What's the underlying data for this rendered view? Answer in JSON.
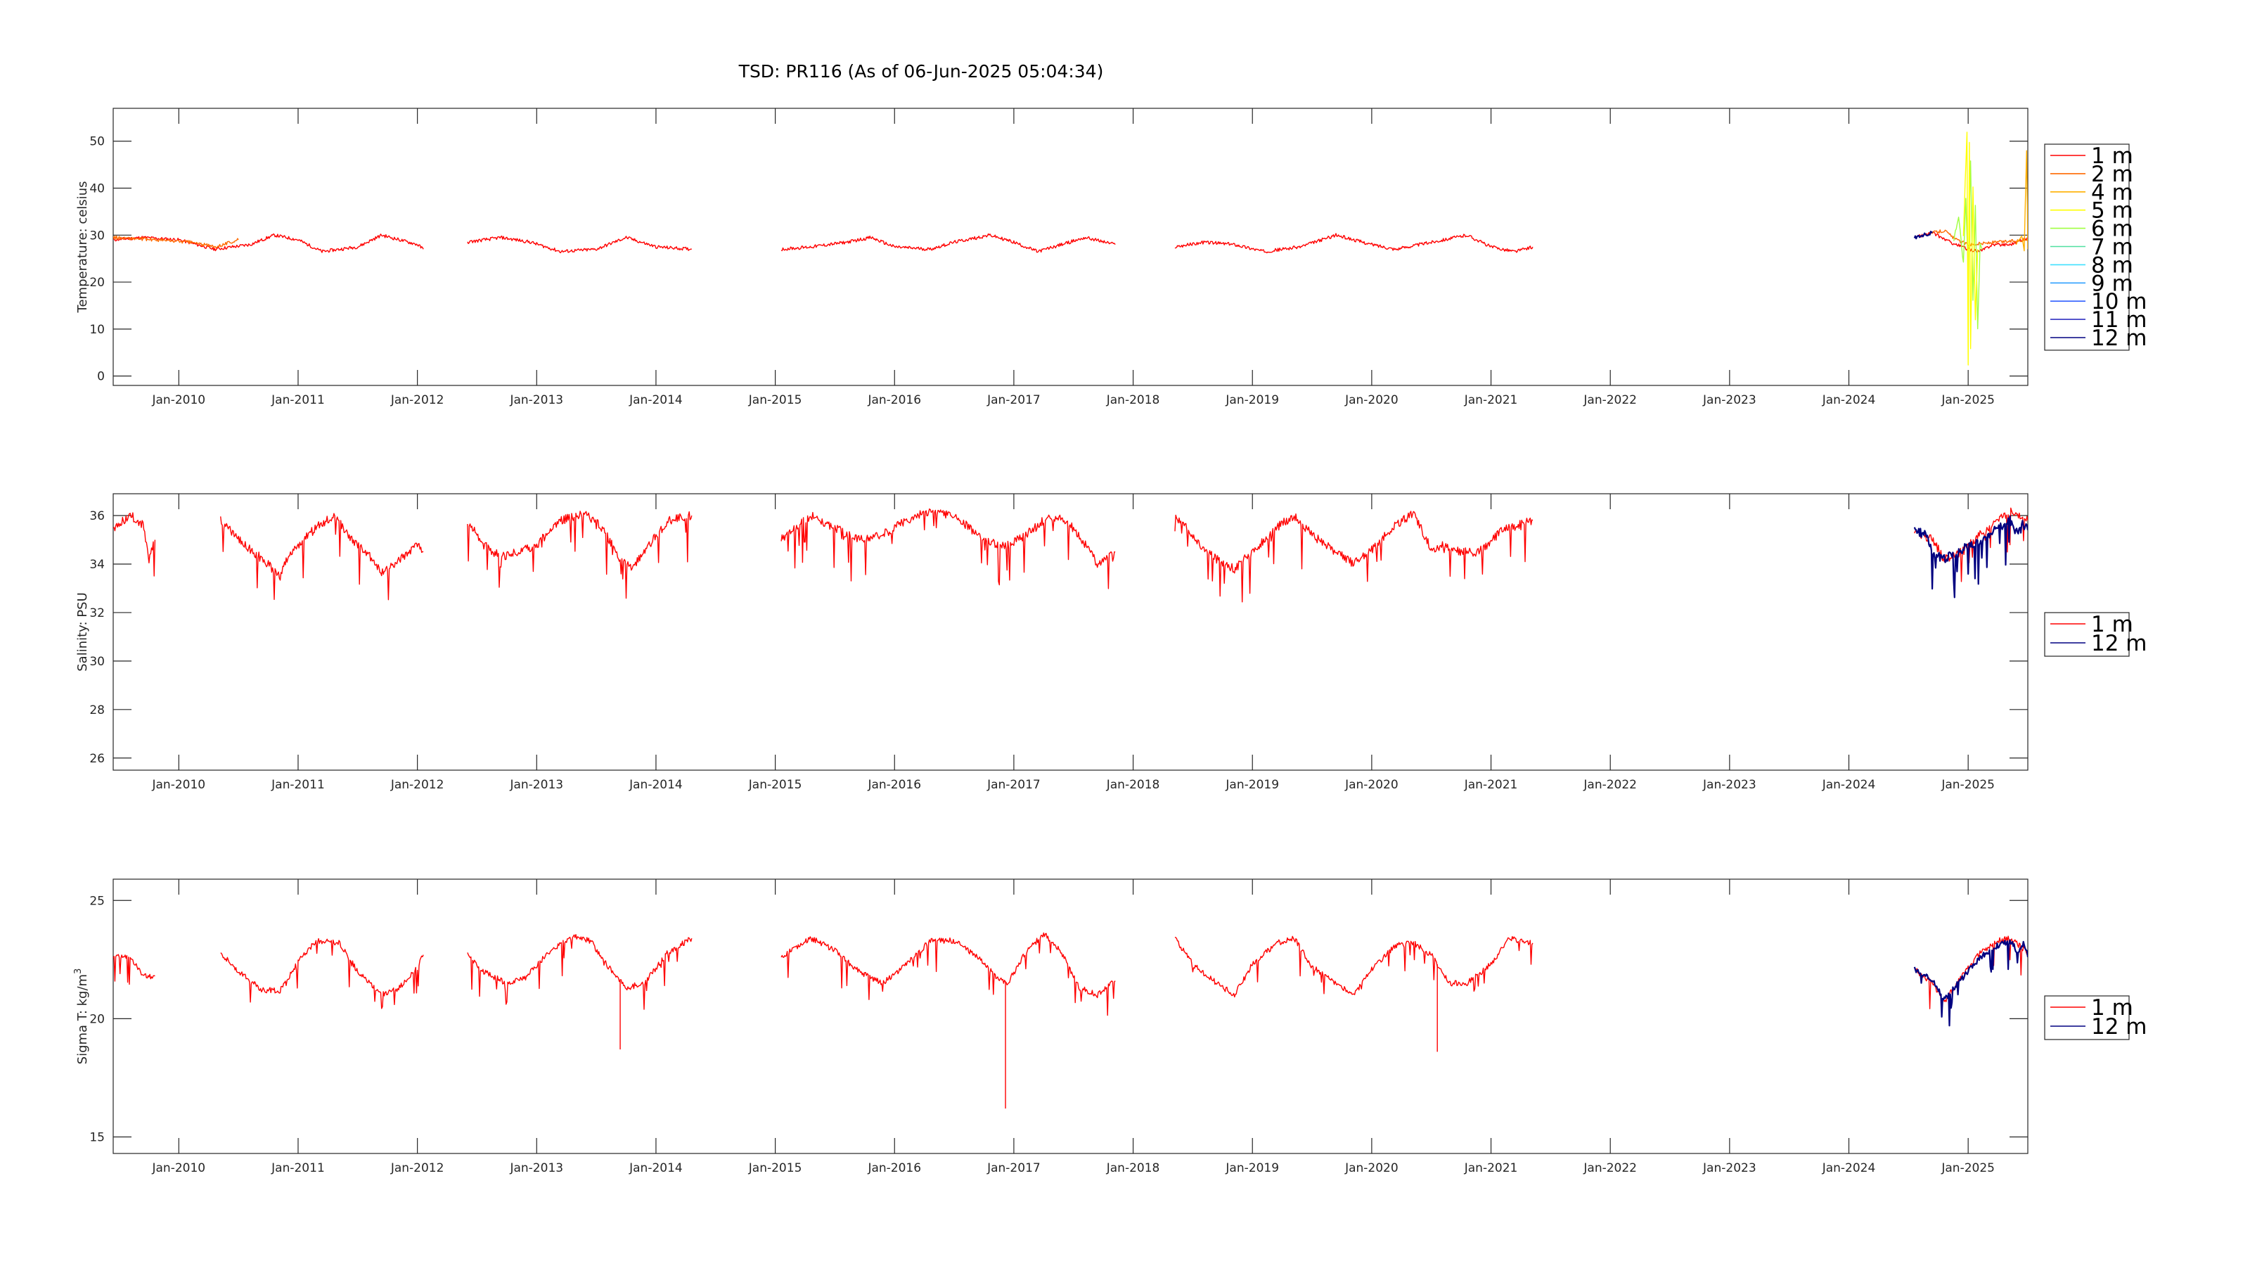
{
  "figure": {
    "title": "TSD: PR116 (As of 06-Jun-2025 05:04:34)"
  },
  "chart_data": [
    {
      "id": "temperature",
      "type": "line",
      "ylabel": "Temperature:  celsius",
      "ylim": [
        -2,
        57
      ],
      "yticks": [
        0,
        10,
        20,
        30,
        40,
        50
      ],
      "xlim": [
        2009.45,
        2025.5
      ],
      "xticks": [
        "Jan-2010",
        "Jan-2011",
        "Jan-2012",
        "Jan-2013",
        "Jan-2014",
        "Jan-2015",
        "Jan-2016",
        "Jan-2017",
        "Jan-2018",
        "Jan-2019",
        "Jan-2020",
        "Jan-2021",
        "Jan-2022",
        "Jan-2023",
        "Jan-2024",
        "Jan-2025"
      ],
      "legend": [
        "1 m",
        "2 m",
        "4 m",
        "5 m",
        "6 m",
        "7 m",
        "8 m",
        "9 m",
        "10 m",
        "11 m",
        "12 m"
      ],
      "colors": [
        "#ff0000",
        "#ff6a00",
        "#ffb000",
        "#ffff00",
        "#a0ff40",
        "#50e0a0",
        "#40e0ff",
        "#30a0ff",
        "#3060ff",
        "#3030c0",
        "#000080"
      ],
      "series": [
        {
          "name": "1 m",
          "segments": [
            {
              "x": [
                2009.45,
                2009.7,
                2010.0,
                2010.3,
                2010.6,
                2010.8,
                2011.0,
                2011.2,
                2011.5,
                2011.7,
                2012.0,
                2012.05
              ],
              "y": [
                29,
                29.5,
                29,
                27,
                28,
                30,
                29,
                26.5,
                27.5,
                30,
                28,
                27
              ]
            },
            {
              "x": [
                2012.42,
                2012.7,
                2012.95,
                2013.2,
                2013.5,
                2013.75,
                2014.0,
                2014.3
              ],
              "y": [
                28.5,
                29.5,
                28.5,
                26.5,
                27,
                29.5,
                27.5,
                27
              ]
            },
            {
              "x": [
                2015.05,
                2015.3,
                2015.6,
                2015.8,
                2016.0,
                2016.3,
                2016.5,
                2016.8,
                2017.0,
                2017.2,
                2017.4,
                2017.6,
                2017.85
              ],
              "y": [
                27,
                27.5,
                28.5,
                29.5,
                27.5,
                27,
                28.5,
                30,
                28.5,
                26.5,
                28,
                29.5,
                28
              ]
            },
            {
              "x": [
                2018.35,
                2018.6,
                2018.85,
                2019.1,
                2019.4,
                2019.7,
                2020.0,
                2020.2,
                2020.5,
                2020.8,
                2021.0,
                2021.2,
                2021.35
              ],
              "y": [
                27.5,
                28.5,
                28,
                26.5,
                27.5,
                30,
                28,
                27,
                28.5,
                30,
                27.5,
                26.5,
                27.5
              ]
            },
            {
              "x": [
                2024.55,
                2024.7,
                2024.85,
                2025.0,
                2025.1,
                2025.2,
                2025.35,
                2025.5
              ],
              "y": [
                29.5,
                30.5,
                28.5,
                27,
                26.5,
                28,
                28,
                29.5
              ]
            }
          ]
        },
        {
          "name": "2 m",
          "segments": [
            {
              "x": [
                2009.45,
                2009.8,
                2010.1,
                2010.3,
                2010.5
              ],
              "y": [
                29.5,
                29,
                28.5,
                27.5,
                29
              ]
            },
            {
              "x": [
                2024.7,
                2024.8,
                2024.9,
                2025.0,
                2025.5
              ],
              "y": [
                30.5,
                31,
                29,
                28,
                29
              ]
            }
          ]
        },
        {
          "name": "6 m",
          "segments": [
            {
              "x": [
                2024.88,
                2024.92,
                2024.96,
                2024.98,
                2025.0,
                2025.02,
                2025.04,
                2025.06,
                2025.08,
                2025.1,
                2025.12
              ],
              "y": [
                29,
                34,
                24,
                38,
                22,
                46,
                16,
                36,
                10,
                28,
                27
              ]
            }
          ]
        },
        {
          "name": "5 m",
          "segments": [
            {
              "x": [
                2024.96,
                2024.99,
                2025.0,
                2025.01,
                2025.02,
                2025.04,
                2025.06,
                2025.08
              ],
              "y": [
                30,
                52,
                2,
                50,
                6,
                40,
                12,
                27
              ]
            }
          ]
        },
        {
          "name": "4 m",
          "segments": [
            {
              "x": [
                2025.4,
                2025.45,
                2025.47,
                2025.49,
                2025.5
              ],
              "y": [
                28,
                30,
                27,
                48,
                27
              ]
            }
          ]
        },
        {
          "name": "12 m",
          "segments": [
            {
              "x": [
                2024.55,
                2024.62,
                2024.7
              ],
              "y": [
                29.5,
                30,
                30.5
              ]
            }
          ]
        }
      ]
    },
    {
      "id": "salinity",
      "type": "line",
      "ylabel": "Salinity:  PSU",
      "ylim": [
        25.5,
        36.9
      ],
      "yticks": [
        26,
        28,
        30,
        32,
        34,
        36
      ],
      "xlim": [
        2009.45,
        2025.5
      ],
      "xticks": [
        "Jan-2010",
        "Jan-2011",
        "Jan-2012",
        "Jan-2013",
        "Jan-2014",
        "Jan-2015",
        "Jan-2016",
        "Jan-2017",
        "Jan-2018",
        "Jan-2019",
        "Jan-2020",
        "Jan-2021",
        "Jan-2022",
        "Jan-2023",
        "Jan-2024",
        "Jan-2025"
      ],
      "legend": [
        "1 m",
        "12 m"
      ],
      "colors": [
        "#ff0000",
        "#000080"
      ],
      "series": [
        {
          "name": "1 m",
          "segments": [
            {
              "x": [
                2009.45,
                2009.6,
                2009.7,
                2009.75,
                2009.8
              ],
              "y": [
                35.5,
                36,
                35.6,
                34.2,
                35
              ]
            },
            {
              "x": [
                2010.35,
                2010.5,
                2010.7,
                2010.85,
                2010.9,
                2011.0,
                2011.15,
                2011.3,
                2011.45,
                2011.6,
                2011.7,
                2011.85,
                2012.0,
                2012.05
              ],
              "y": [
                35.8,
                35,
                34.2,
                33.5,
                34.2,
                34.8,
                35.5,
                36,
                35,
                34.3,
                33.6,
                34.2,
                34.8,
                34.5
              ]
            },
            {
              "x": [
                2012.42,
                2012.55,
                2012.7,
                2012.85,
                2013.0,
                2013.2,
                2013.4,
                2013.55,
                2013.7,
                2013.8,
                2013.9,
                2014.1,
                2014.3
              ],
              "y": [
                35.8,
                34.8,
                34.3,
                34.5,
                34.8,
                35.8,
                36.1,
                35.5,
                34.2,
                33.8,
                34.5,
                35.8,
                36
              ]
            },
            {
              "x": [
                2015.05,
                2015.3,
                2015.5,
                2015.7,
                2015.9,
                2016.1,
                2016.3,
                2016.5,
                2016.7,
                2016.85,
                2016.95,
                2017.1,
                2017.3,
                2017.45,
                2017.6,
                2017.7,
                2017.85
              ],
              "y": [
                35,
                36,
                35.5,
                35,
                35.2,
                35.8,
                36.2,
                36,
                35.2,
                34.8,
                34.8,
                35.2,
                36,
                35.8,
                34.8,
                34,
                34.5
              ]
            },
            {
              "x": [
                2018.35,
                2018.45,
                2018.55,
                2018.7,
                2018.85,
                2019.0,
                2019.2,
                2019.35,
                2019.5,
                2019.7,
                2019.85,
                2020.0,
                2020.2,
                2020.35,
                2020.5,
                2020.6,
                2020.75,
                2020.9,
                2021.1,
                2021.35
              ],
              "y": [
                36,
                35.5,
                34.8,
                34.2,
                33.8,
                34.5,
                35.5,
                36,
                35.2,
                34.5,
                34,
                34.6,
                35.6,
                36.1,
                34.6,
                34.8,
                34.5,
                34.5,
                35.4,
                35.8
              ]
            },
            {
              "x": [
                2024.55,
                2024.7,
                2024.8,
                2024.95,
                2025.1,
                2025.25,
                2025.35,
                2025.45,
                2025.5
              ],
              "y": [
                35.3,
                35,
                34.2,
                34.5,
                35.2,
                35.8,
                36.2,
                36,
                35.8
              ]
            }
          ]
        },
        {
          "name": "12 m",
          "segments": [
            {
              "x": [
                2024.55,
                2024.65,
                2024.72,
                2024.8,
                2024.95,
                2025.1,
                2025.25,
                2025.35,
                2025.42,
                2025.47,
                2025.5
              ],
              "y": [
                35.4,
                35.2,
                34.4,
                34.2,
                34.6,
                35,
                35.5,
                35.8,
                35.2,
                35.8,
                35.4
              ]
            }
          ]
        }
      ]
    },
    {
      "id": "sigma_t",
      "type": "line",
      "ylabel": "Sigma T:  kg/m",
      "ylabel_sup": "3",
      "ylim": [
        14.3,
        25.9
      ],
      "yticks": [
        15,
        20,
        25
      ],
      "xlim": [
        2009.45,
        2025.5
      ],
      "xticks": [
        "Jan-2010",
        "Jan-2011",
        "Jan-2012",
        "Jan-2013",
        "Jan-2014",
        "Jan-2015",
        "Jan-2016",
        "Jan-2017",
        "Jan-2018",
        "Jan-2019",
        "Jan-2020",
        "Jan-2021",
        "Jan-2022",
        "Jan-2023",
        "Jan-2024",
        "Jan-2025"
      ],
      "legend": [
        "1 m",
        "12 m"
      ],
      "colors": [
        "#ff0000",
        "#000080"
      ],
      "series": [
        {
          "name": "1 m",
          "segments": [
            {
              "x": [
                2009.45,
                2009.6,
                2009.7,
                2009.8
              ],
              "y": [
                22.6,
                22.6,
                21.8,
                21.8
              ]
            },
            {
              "x": [
                2010.35,
                2010.5,
                2010.7,
                2010.85,
                2011.0,
                2011.15,
                2011.35,
                2011.5,
                2011.7,
                2011.85,
                2012.0,
                2012.05
              ],
              "y": [
                22.8,
                22,
                21.2,
                21.2,
                22.4,
                23.3,
                23.2,
                22,
                21,
                21.3,
                22.2,
                22.7
              ]
            },
            {
              "x": [
                2012.42,
                2012.55,
                2012.75,
                2012.9,
                2013.1,
                2013.3,
                2013.45,
                2013.6,
                2013.75,
                2013.9,
                2014.1,
                2014.3
              ],
              "y": [
                22.7,
                22,
                21.5,
                21.7,
                22.8,
                23.5,
                23.3,
                22.2,
                21.3,
                21.5,
                22.8,
                23.4
              ]
            },
            {
              "x": [
                2015.05,
                2015.3,
                2015.5,
                2015.7,
                2015.9,
                2016.1,
                2016.3,
                2016.5,
                2016.7,
                2016.85,
                2016.95,
                2017.1,
                2017.25,
                2017.4,
                2017.55,
                2017.7,
                2017.85
              ],
              "y": [
                22.6,
                23.4,
                22.9,
                22,
                21.5,
                22.3,
                23.3,
                23.3,
                22.6,
                21.8,
                21.5,
                22.8,
                23.6,
                22.8,
                21.3,
                21,
                21.6
              ]
            },
            {
              "x": [
                2018.35,
                2018.5,
                2018.7,
                2018.85,
                2019.0,
                2019.2,
                2019.35,
                2019.5,
                2019.7,
                2019.85,
                2020.0,
                2020.2,
                2020.35,
                2020.5,
                2020.65,
                2020.8,
                2021.0,
                2021.15,
                2021.35
              ],
              "y": [
                23.4,
                22.3,
                21.5,
                21,
                22.3,
                23.2,
                23.4,
                22.2,
                21.5,
                21,
                22.1,
                23.1,
                23.2,
                22.7,
                21.5,
                21.5,
                22.3,
                23.4,
                23.2
              ]
            },
            {
              "x": [
                2024.55,
                2024.7,
                2024.8,
                2024.95,
                2025.1,
                2025.25,
                2025.35,
                2025.5
              ],
              "y": [
                22.1,
                21.5,
                20.7,
                21.8,
                22.8,
                23.3,
                23.4,
                22.8
              ]
            }
          ]
        },
        {
          "name": "12 m",
          "segments": [
            {
              "x": [
                2024.55,
                2024.7,
                2024.8,
                2024.95,
                2025.1,
                2025.25,
                2025.35,
                2025.42,
                2025.47,
                2025.5
              ],
              "y": [
                22.1,
                21.6,
                20.8,
                21.7,
                22.6,
                23.1,
                23.3,
                22.8,
                23.2,
                22.6
              ]
            }
          ]
        }
      ],
      "spikes": [
        {
          "x": 2016.93,
          "y": 16.2
        },
        {
          "x": 2013.7,
          "y": 18.7
        },
        {
          "x": 2020.55,
          "y": 18.6
        }
      ]
    }
  ]
}
